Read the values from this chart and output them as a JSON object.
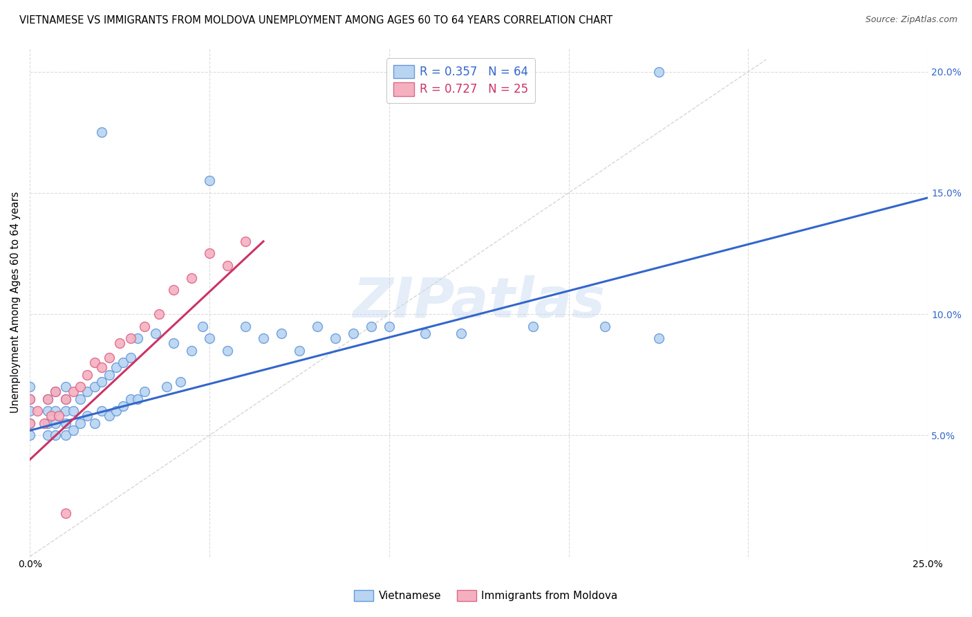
{
  "title": "VIETNAMESE VS IMMIGRANTS FROM MOLDOVA UNEMPLOYMENT AMONG AGES 60 TO 64 YEARS CORRELATION CHART",
  "source": "Source: ZipAtlas.com",
  "ylabel": "Unemployment Among Ages 60 to 64 years",
  "xlim": [
    0.0,
    0.25
  ],
  "ylim": [
    0.0,
    0.21
  ],
  "xticks": [
    0.0,
    0.05,
    0.1,
    0.15,
    0.2,
    0.25
  ],
  "yticks": [
    0.0,
    0.05,
    0.1,
    0.15,
    0.2
  ],
  "xtick_labels": [
    "0.0%",
    "",
    "",
    "",
    "",
    "25.0%"
  ],
  "ytick_labels_right": [
    "",
    "5.0%",
    "10.0%",
    "15.0%",
    "20.0%"
  ],
  "watermark": "ZIPatlas",
  "viet_color": "#b8d4f0",
  "viet_edge": "#6699dd",
  "moldova_color": "#f5b0c0",
  "moldova_edge": "#dd6688",
  "viet_line_color": "#3366cc",
  "moldova_line_color": "#cc3366",
  "diagonal_color": "#cccccc",
  "viet_scatter_x": [
    0.0,
    0.0,
    0.0,
    0.0,
    0.0,
    0.005,
    0.005,
    0.005,
    0.005,
    0.007,
    0.007,
    0.007,
    0.007,
    0.01,
    0.01,
    0.01,
    0.01,
    0.01,
    0.012,
    0.012,
    0.014,
    0.014,
    0.016,
    0.016,
    0.018,
    0.018,
    0.02,
    0.02,
    0.022,
    0.022,
    0.024,
    0.024,
    0.026,
    0.026,
    0.028,
    0.028,
    0.03,
    0.03,
    0.032,
    0.035,
    0.038,
    0.04,
    0.042,
    0.045,
    0.048,
    0.05,
    0.055,
    0.06,
    0.065,
    0.07,
    0.075,
    0.08,
    0.085,
    0.09,
    0.095,
    0.1,
    0.11,
    0.12,
    0.14,
    0.16,
    0.175,
    0.02,
    0.05,
    0.175
  ],
  "viet_scatter_y": [
    0.05,
    0.055,
    0.06,
    0.065,
    0.07,
    0.05,
    0.055,
    0.06,
    0.065,
    0.05,
    0.055,
    0.06,
    0.068,
    0.05,
    0.055,
    0.06,
    0.065,
    0.07,
    0.052,
    0.06,
    0.055,
    0.065,
    0.058,
    0.068,
    0.055,
    0.07,
    0.06,
    0.072,
    0.058,
    0.075,
    0.06,
    0.078,
    0.062,
    0.08,
    0.065,
    0.082,
    0.065,
    0.09,
    0.068,
    0.092,
    0.07,
    0.088,
    0.072,
    0.085,
    0.095,
    0.09,
    0.085,
    0.095,
    0.09,
    0.092,
    0.085,
    0.095,
    0.09,
    0.092,
    0.095,
    0.095,
    0.092,
    0.092,
    0.095,
    0.095,
    0.09,
    0.175,
    0.155,
    0.2
  ],
  "moldova_scatter_x": [
    0.0,
    0.0,
    0.002,
    0.004,
    0.005,
    0.006,
    0.007,
    0.008,
    0.01,
    0.012,
    0.014,
    0.016,
    0.018,
    0.02,
    0.022,
    0.025,
    0.028,
    0.032,
    0.036,
    0.04,
    0.045,
    0.05,
    0.055,
    0.06,
    0.01
  ],
  "moldova_scatter_y": [
    0.055,
    0.065,
    0.06,
    0.055,
    0.065,
    0.058,
    0.068,
    0.058,
    0.065,
    0.068,
    0.07,
    0.075,
    0.08,
    0.078,
    0.082,
    0.088,
    0.09,
    0.095,
    0.1,
    0.11,
    0.115,
    0.125,
    0.12,
    0.13,
    0.018
  ],
  "viet_line_x": [
    0.0,
    0.25
  ],
  "viet_line_y": [
    0.052,
    0.148
  ],
  "moldova_line_x": [
    0.0,
    0.065
  ],
  "moldova_line_y": [
    0.04,
    0.13
  ]
}
